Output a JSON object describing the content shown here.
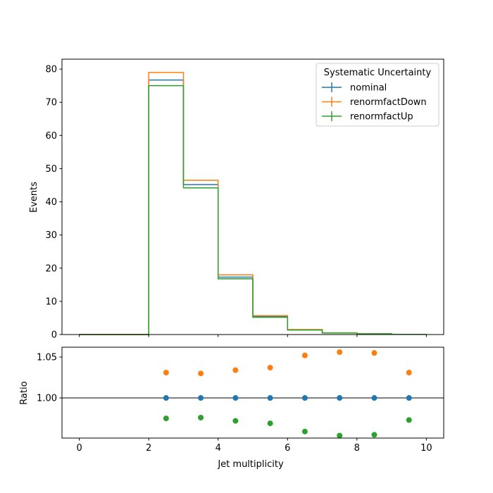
{
  "chart_data": [
    {
      "type": "histogram",
      "panel": "main",
      "ylabel": "Events",
      "xlim": [
        -0.5,
        10.5
      ],
      "ylim": [
        0,
        83
      ],
      "yticks": [
        0,
        10,
        20,
        30,
        40,
        50,
        60,
        70,
        80
      ],
      "bin_edges": [
        0,
        1,
        2,
        3,
        4,
        5,
        6,
        7,
        8,
        9,
        10
      ],
      "legend": {
        "title": "Systematic Uncertainty",
        "placement": "top-right"
      },
      "series": [
        {
          "name": "nominal",
          "color": "#1f77b4",
          "values": [
            0,
            0,
            76.7,
            45.2,
            17.3,
            5.4,
            1.4,
            0.5,
            0.2,
            0.05
          ]
        },
        {
          "name": "renormfactDown",
          "color": "#ff7f0e",
          "values": [
            0,
            0,
            79.0,
            46.5,
            18.0,
            5.7,
            1.5,
            0.5,
            0.2,
            0.05
          ]
        },
        {
          "name": "renormfactUp",
          "color": "#2ca02c",
          "values": [
            0,
            0,
            75.0,
            44.2,
            16.8,
            5.2,
            1.35,
            0.45,
            0.2,
            0.05
          ]
        }
      ]
    },
    {
      "type": "scatter",
      "panel": "ratio",
      "xlabel": "Jet multiplicity",
      "ylabel": "Ratio",
      "xlim": [
        -0.5,
        10.5
      ],
      "ylim": [
        0.951,
        1.062
      ],
      "xticks": [
        0,
        2,
        4,
        6,
        8,
        10
      ],
      "ytick_labels": [
        "1.00",
        "1.05"
      ],
      "yticks": [
        1.0,
        1.05
      ],
      "reference_line": 1.0,
      "x": [
        2.5,
        3.5,
        4.5,
        5.5,
        6.5,
        7.5,
        8.5,
        9.5
      ],
      "series": [
        {
          "name": "nominal",
          "color": "#1f77b4",
          "values": [
            1.0,
            1.0,
            1.0,
            1.0,
            1.0,
            1.0,
            1.0,
            1.0
          ]
        },
        {
          "name": "renormfactDown",
          "color": "#ff7f0e",
          "values": [
            1.031,
            1.03,
            1.034,
            1.037,
            1.052,
            1.056,
            1.055,
            1.031
          ]
        },
        {
          "name": "renormfactUp",
          "color": "#2ca02c",
          "values": [
            0.975,
            0.976,
            0.972,
            0.969,
            0.959,
            0.954,
            0.955,
            0.973
          ]
        }
      ]
    }
  ]
}
